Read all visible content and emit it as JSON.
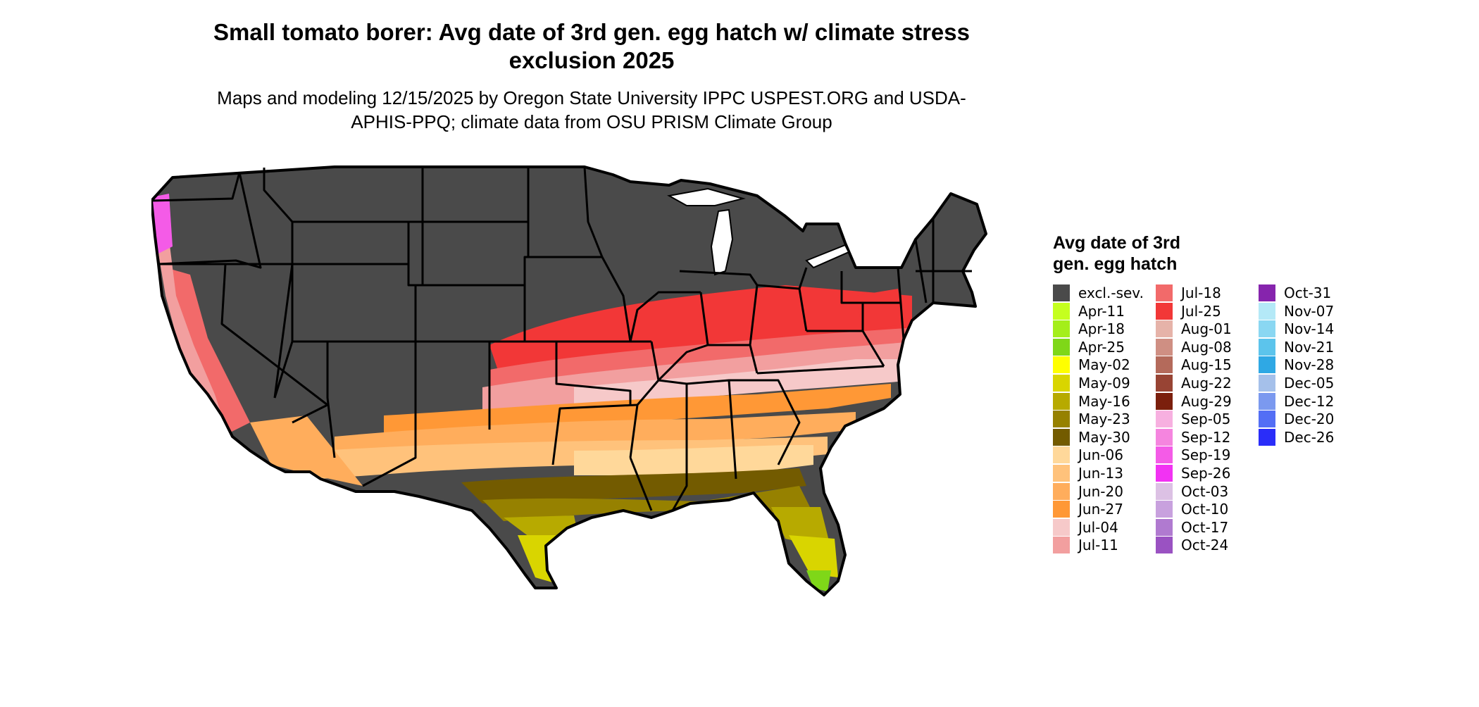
{
  "title": "Small tomato borer: Avg date of 3rd gen. egg hatch w/ climate stress exclusion 2025",
  "subtitle": "Maps and modeling 12/15/2025 by Oregon State University IPPC USPEST.ORG and USDA-APHIS-PPQ; climate data from OSU PRISM Climate Group",
  "legend": {
    "title": "Avg date of 3rd gen. egg hatch",
    "items": [
      {
        "label": "excl.-sev.",
        "color": "#4a4a4a"
      },
      {
        "label": "Apr-11",
        "color": "#c5ff1f"
      },
      {
        "label": "Apr-18",
        "color": "#a4ee1a"
      },
      {
        "label": "Apr-25",
        "color": "#7fd718"
      },
      {
        "label": "May-02",
        "color": "#ffff00"
      },
      {
        "label": "May-09",
        "color": "#d9d500"
      },
      {
        "label": "May-16",
        "color": "#b7aa00"
      },
      {
        "label": "May-23",
        "color": "#968100"
      },
      {
        "label": "May-30",
        "color": "#735b00"
      },
      {
        "label": "Jun-06",
        "color": "#ffd89a"
      },
      {
        "label": "Jun-13",
        "color": "#ffc27b"
      },
      {
        "label": "Jun-20",
        "color": "#ffad5c"
      },
      {
        "label": "Jun-27",
        "color": "#ff9836"
      },
      {
        "label": "Jul-04",
        "color": "#f6c9c9"
      },
      {
        "label": "Jul-11",
        "color": "#f29f9f"
      },
      {
        "label": "Jul-18",
        "color": "#f26a6a"
      },
      {
        "label": "Jul-25",
        "color": "#f23737"
      },
      {
        "label": "Aug-01",
        "color": "#e6b3a9"
      },
      {
        "label": "Aug-08",
        "color": "#cf8f83"
      },
      {
        "label": "Aug-15",
        "color": "#b46a5b"
      },
      {
        "label": "Aug-22",
        "color": "#984434"
      },
      {
        "label": "Aug-29",
        "color": "#7b1f0d"
      },
      {
        "label": "Sep-05",
        "color": "#f7b0e0"
      },
      {
        "label": "Sep-12",
        "color": "#f585df"
      },
      {
        "label": "Sep-19",
        "color": "#f45be7"
      },
      {
        "label": "Sep-26",
        "color": "#f232f3"
      },
      {
        "label": "Oct-03",
        "color": "#dcc1e4"
      },
      {
        "label": "Oct-10",
        "color": "#c8a1de"
      },
      {
        "label": "Oct-17",
        "color": "#b07ad0"
      },
      {
        "label": "Oct-24",
        "color": "#9a52c2"
      },
      {
        "label": "Oct-31",
        "color": "#8624ad"
      },
      {
        "label": "Nov-07",
        "color": "#b4e9f7"
      },
      {
        "label": "Nov-14",
        "color": "#8ad7f2"
      },
      {
        "label": "Nov-21",
        "color": "#5cc4ec"
      },
      {
        "label": "Nov-28",
        "color": "#2fa8e4"
      },
      {
        "label": "Dec-05",
        "color": "#a5c0ea"
      },
      {
        "label": "Dec-12",
        "color": "#7b99ef"
      },
      {
        "label": "Dec-20",
        "color": "#536ef5"
      },
      {
        "label": "Dec-26",
        "color": "#2a2df9"
      }
    ]
  }
}
